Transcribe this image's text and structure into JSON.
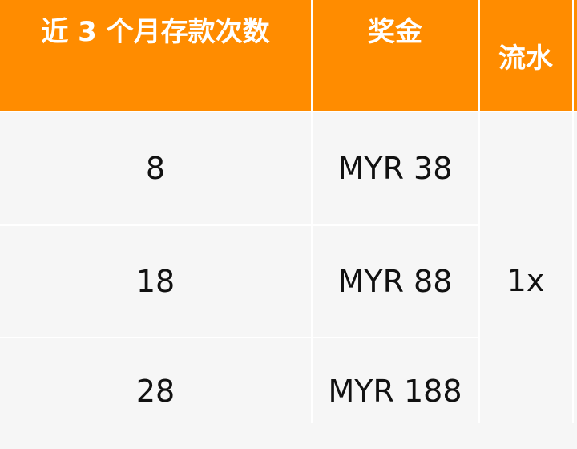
{
  "table": {
    "headers": [
      "近 3 个月存款次数",
      "奖金",
      "流水"
    ],
    "rows": [
      {
        "deposits": "8",
        "bonus": "MYR 38"
      },
      {
        "deposits": "18",
        "bonus": "MYR 88"
      },
      {
        "deposits": "28",
        "bonus": "MYR 188"
      }
    ],
    "turnover": "1x"
  },
  "colors": {
    "header": "#ff8c00",
    "cell": "#f6f6f6"
  }
}
